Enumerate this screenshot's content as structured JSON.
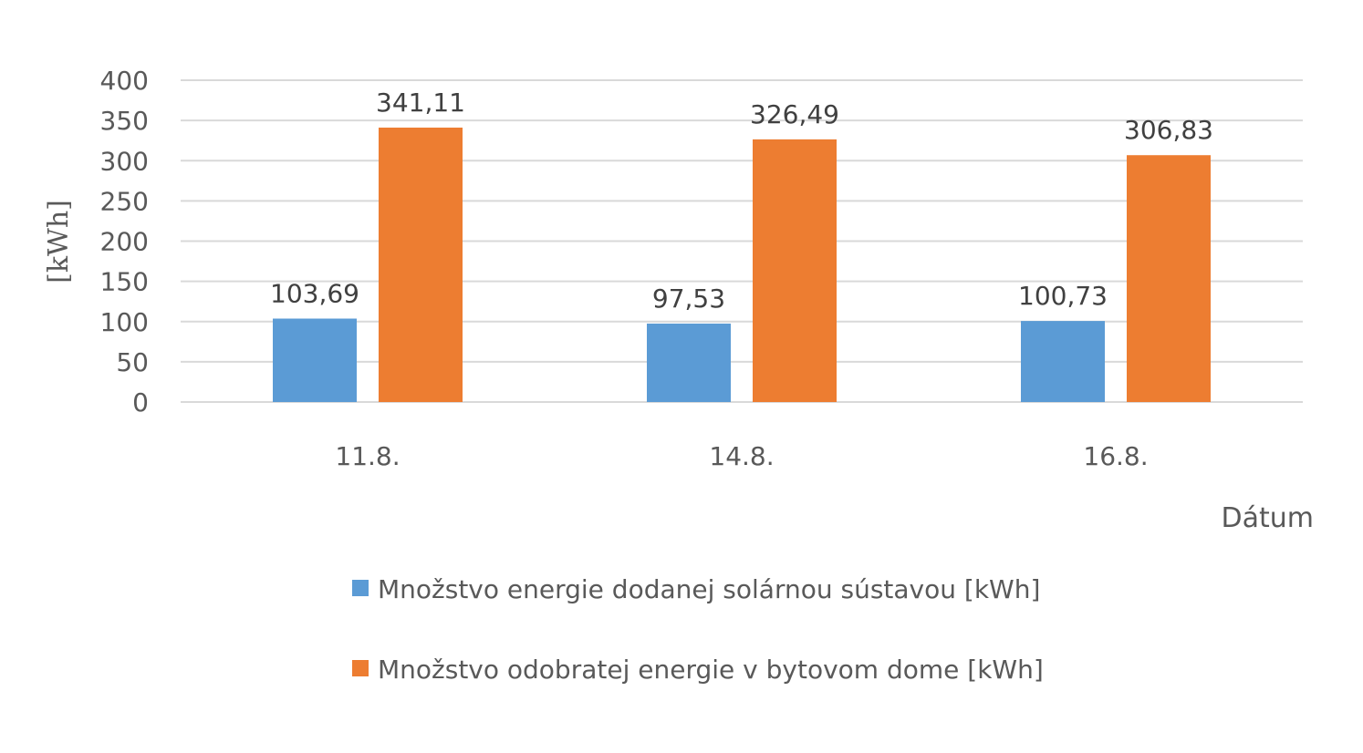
{
  "chart_data": {
    "type": "bar",
    "categories": [
      "11.8.",
      "14.8.",
      "16.8."
    ],
    "series": [
      {
        "name": "Množstvo energie dodanej solárnou sústavou [kWh]",
        "values": [
          103.69,
          97.53,
          100.73
        ],
        "labels": [
          "103,69",
          "97,53",
          "100,73"
        ],
        "color": "#5B9BD5"
      },
      {
        "name": "Množstvo odobratej energie v bytovom dome [kWh]",
        "values": [
          341.11,
          326.49,
          306.83
        ],
        "labels": [
          "341,11",
          "326,49",
          "306,83"
        ],
        "color": "#ED7D31"
      }
    ],
    "xlabel": "Dátum",
    "ylabel": "[kWh]",
    "ylim": [
      0,
      400
    ],
    "yticks": [
      0,
      50,
      100,
      150,
      200,
      250,
      300,
      350,
      400
    ],
    "grid": true,
    "legend": "bottom"
  }
}
